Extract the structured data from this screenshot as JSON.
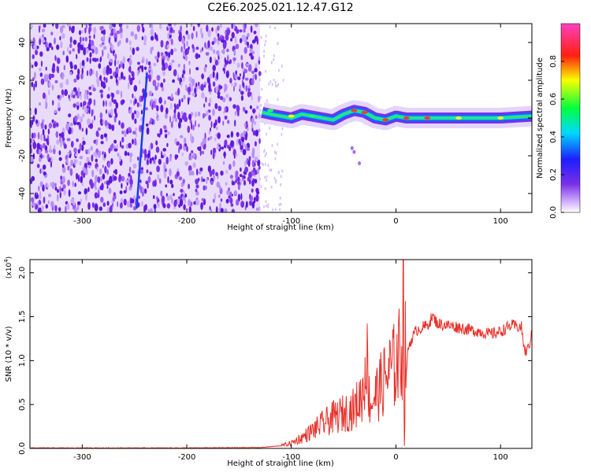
{
  "title": "C2E6.2025.021.12.47.G12",
  "colors": {
    "snr_line": "#e8302a",
    "noise_purple": "#7a30e8",
    "axis": "#000000"
  },
  "chart_data": [
    {
      "type": "heatmap",
      "xlabel": "Height of straight line (km)",
      "ylabel": "Frequency (Hz)",
      "xlim": [
        -350,
        130
      ],
      "ylim": [
        -50,
        50
      ],
      "xticks": [
        -300,
        -200,
        -100,
        0,
        100
      ],
      "yticks": [
        -40,
        -20,
        0,
        20,
        40
      ],
      "colorbar": {
        "label": "Normalized spectral amplitude",
        "range": [
          0.0,
          1.0
        ],
        "ticks": [
          0.0,
          0.2,
          0.4,
          0.6,
          0.8
        ],
        "tick_labels": [
          "0.0",
          "0.2",
          "0.4",
          "0.6",
          "0.8"
        ],
        "colormap": "rainbow (purple-blue-cyan-green-yellow-red-magenta)"
      },
      "regions": {
        "noise_region_x": [
          -350,
          -130
        ],
        "signal_region_x": [
          -130,
          130
        ]
      },
      "signal_track": {
        "x": [
          -128,
          -120,
          -110,
          -100,
          -90,
          -80,
          -70,
          -60,
          -50,
          -40,
          -30,
          -20,
          -10,
          0,
          10,
          30,
          60,
          100,
          130
        ],
        "frequency": [
          3,
          2,
          1,
          0,
          2,
          1,
          0,
          -1,
          2,
          4,
          3,
          0,
          -1,
          1,
          0,
          0,
          0,
          0,
          1
        ]
      },
      "drift_line": {
        "x": [
          -248,
          -238
        ],
        "frequency": [
          -48,
          24
        ]
      }
    },
    {
      "type": "line",
      "xlabel": "Height of straight line (km)",
      "ylabel": "SNR (10 * v/v)",
      "scale_label": "(x10^4)",
      "xlim": [
        -350,
        130
      ],
      "ylim": [
        0,
        2.15
      ],
      "xticks": [
        -300,
        -200,
        -100,
        0,
        100
      ],
      "yticks": [
        0.0,
        0.5,
        1.0,
        1.5,
        2.0
      ],
      "ytick_labels": [
        "0.0",
        "0.5",
        "1.0",
        "1.5",
        "2.0"
      ],
      "series": [
        {
          "x": [
            -350,
            -300,
            -200,
            -130,
            -110,
            -100,
            -90,
            -80,
            -70,
            -60,
            -50,
            -40,
            -35,
            -30,
            -29,
            -25,
            -20,
            -15,
            -10,
            -5,
            0,
            3,
            6,
            7,
            8,
            9,
            10,
            12,
            15,
            20,
            30,
            35,
            40,
            50,
            60,
            70,
            80,
            90,
            100,
            110,
            120,
            123,
            126,
            130
          ],
          "y": [
            0.005,
            0.005,
            0.005,
            0.01,
            0.03,
            0.06,
            0.12,
            0.2,
            0.28,
            0.35,
            0.4,
            0.45,
            0.55,
            0.7,
            1.25,
            0.5,
            0.6,
            0.7,
            0.8,
            0.9,
            0.95,
            1.05,
            1.15,
            2.15,
            0.05,
            1.1,
            0.9,
            1.15,
            1.25,
            1.35,
            1.4,
            1.5,
            1.42,
            1.4,
            1.38,
            1.35,
            1.33,
            1.3,
            1.33,
            1.4,
            1.38,
            1.1,
            1.12,
            1.3
          ]
        }
      ]
    }
  ],
  "colorbar_label": "Normalized spectral amplitude"
}
